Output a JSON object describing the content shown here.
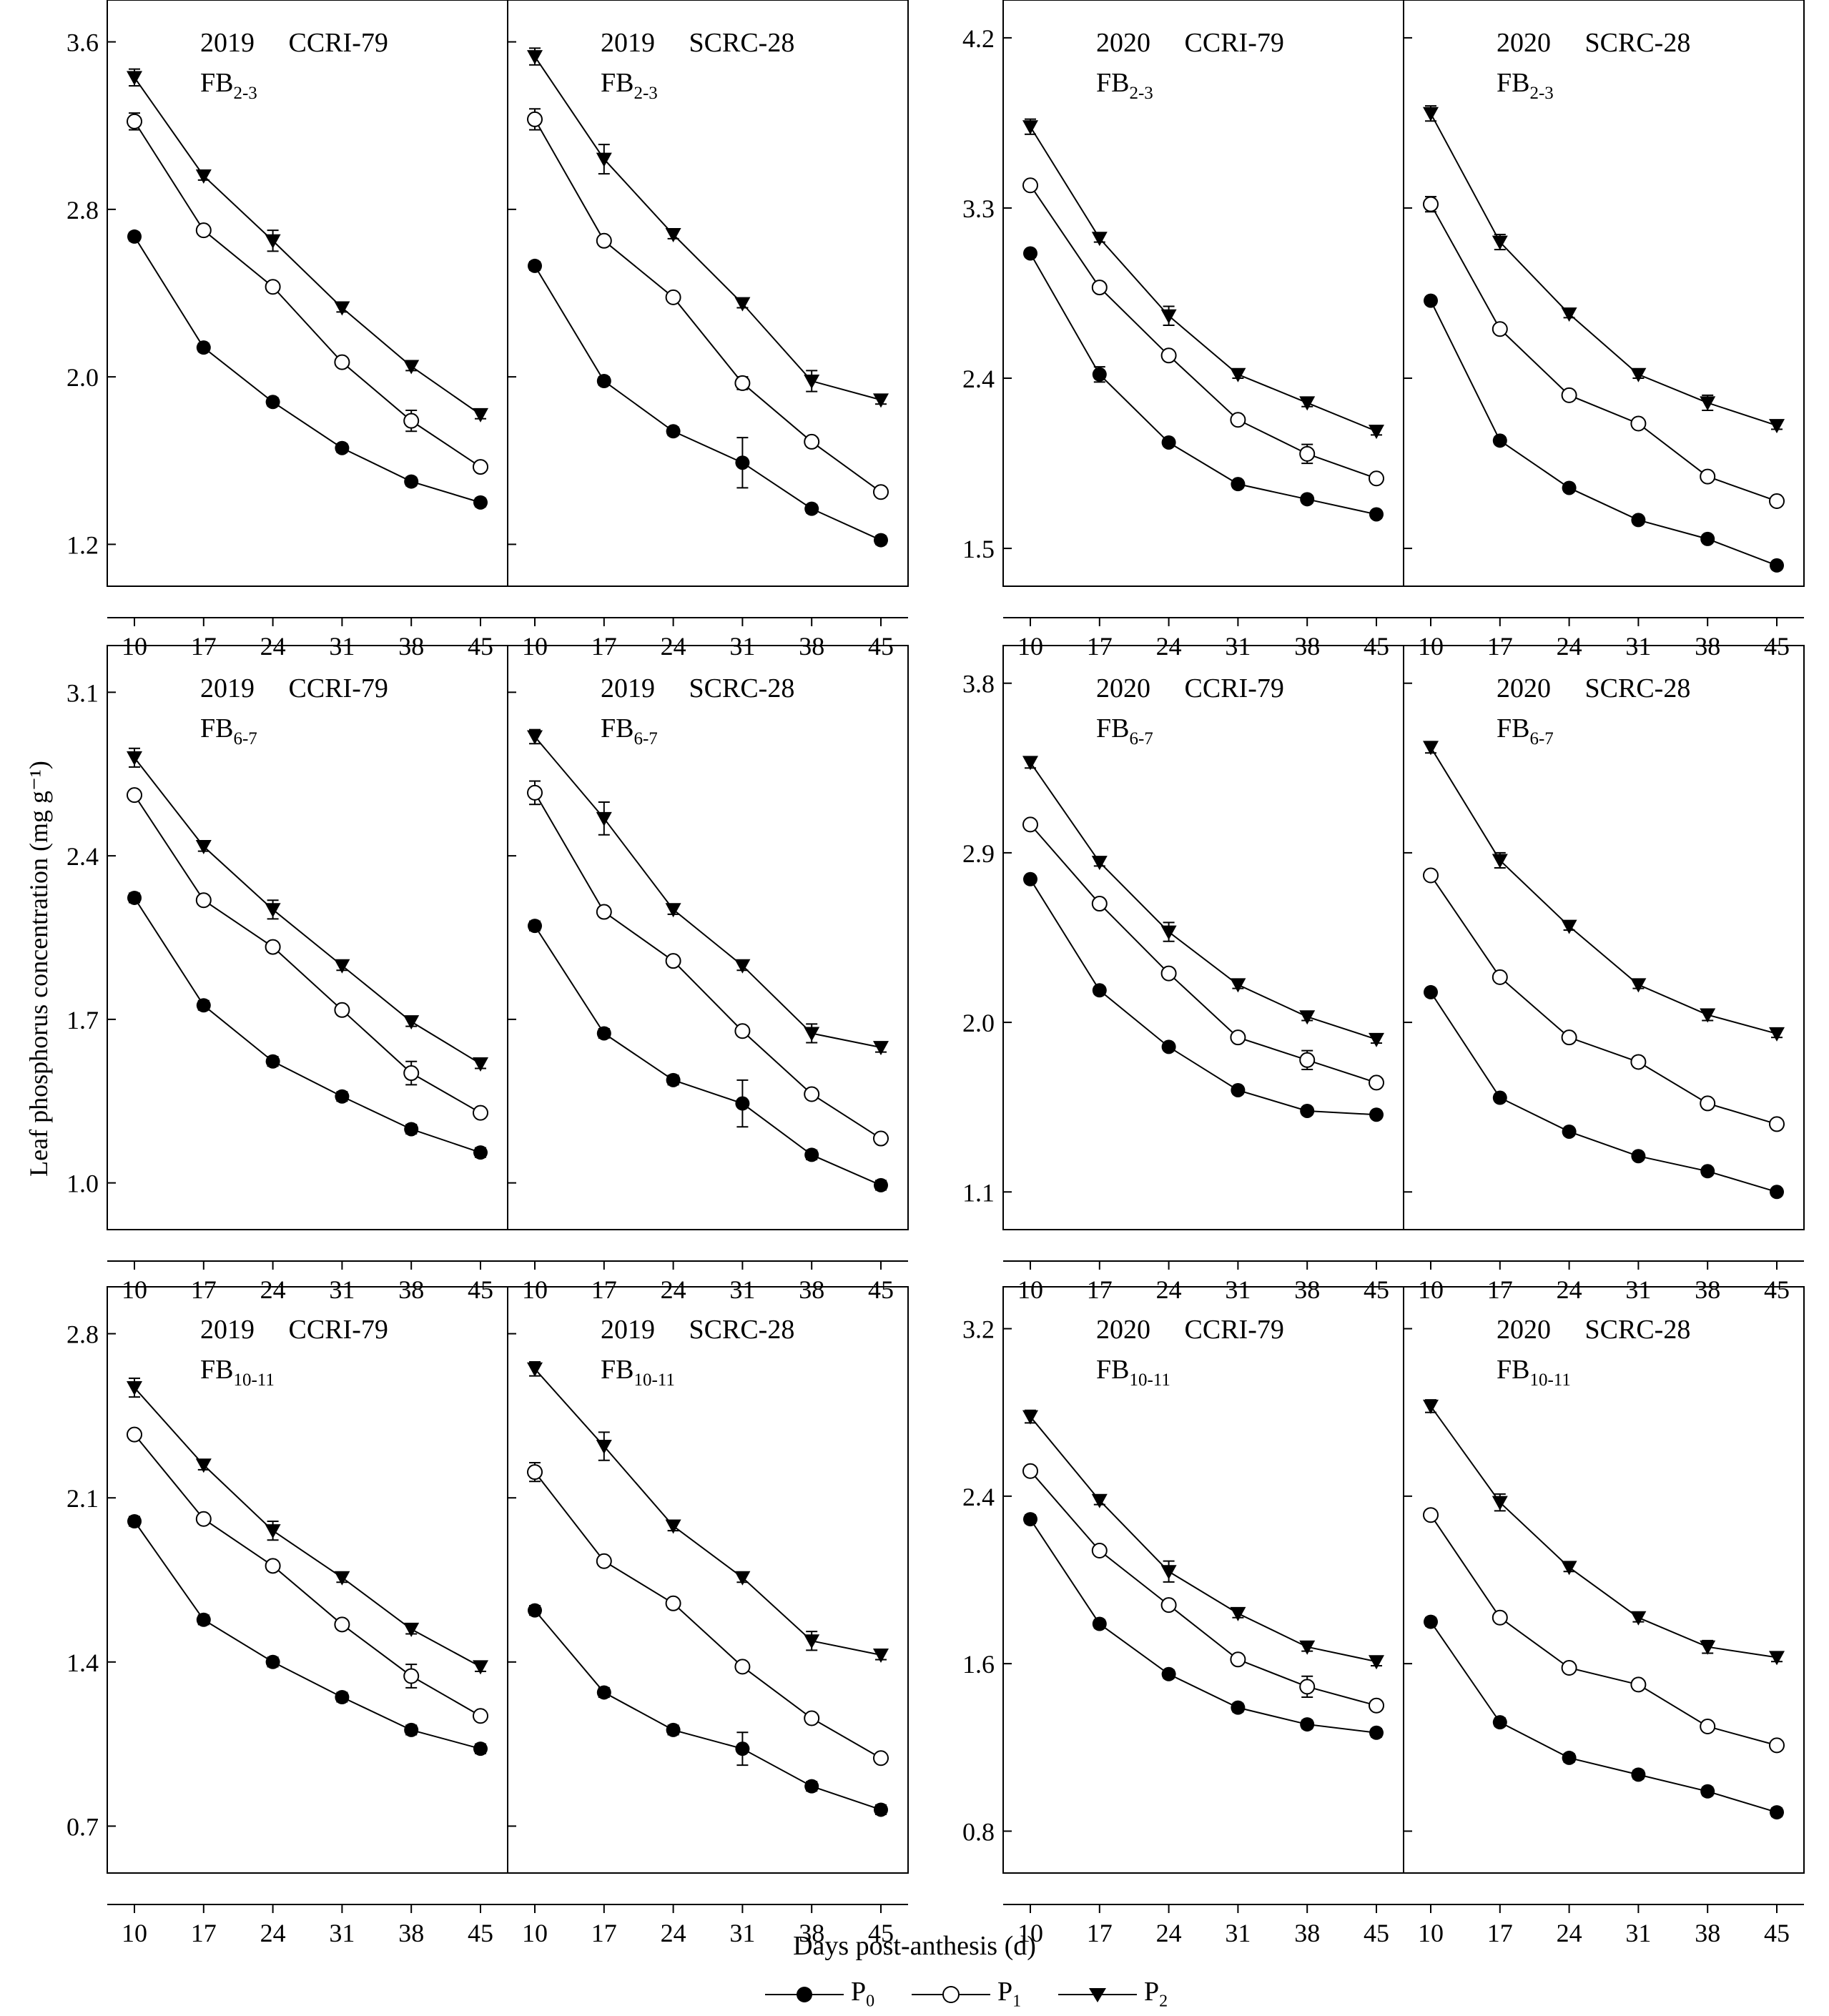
{
  "figure": {
    "ylabel": "Leaf phosphorus concentration (mg g⁻¹)",
    "xlabel": "Days post-anthesis (d)",
    "legend": [
      {
        "label": "P",
        "sub": "0",
        "marker": "filled-circle"
      },
      {
        "label": "P",
        "sub": "1",
        "marker": "open-circle"
      },
      {
        "label": "P",
        "sub": "2",
        "marker": "filled-triangle-down"
      }
    ]
  },
  "chart_data": [
    {
      "type": "line",
      "year": "2019",
      "cultivar": "CCRI-79",
      "position": "FB",
      "position_sub": "2-3",
      "x": [
        10,
        17,
        24,
        31,
        38,
        45
      ],
      "ylim": [
        1.0,
        3.8
      ],
      "yticks": [
        "1.2",
        "2.0",
        "2.8",
        "3.6"
      ],
      "series": [
        {
          "name": "P0",
          "values": [
            2.67,
            2.14,
            1.88,
            1.66,
            1.5,
            1.4
          ],
          "err": [
            0.02,
            0.02,
            0.02,
            0.02,
            0.02,
            0.02
          ]
        },
        {
          "name": "P1",
          "values": [
            3.22,
            2.7,
            2.43,
            2.07,
            1.79,
            1.57
          ],
          "err": [
            0.04,
            0.02,
            0.02,
            0.02,
            0.05,
            0.02
          ]
        },
        {
          "name": "P2",
          "values": [
            3.43,
            2.96,
            2.65,
            2.33,
            2.05,
            1.82
          ],
          "err": [
            0.04,
            0.02,
            0.05,
            0.02,
            0.02,
            0.02
          ]
        }
      ]
    },
    {
      "type": "line",
      "year": "2019",
      "cultivar": "SCRC-28",
      "position": "FB",
      "position_sub": "2-3",
      "x": [
        10,
        17,
        24,
        31,
        38,
        45
      ],
      "ylim": [
        1.0,
        3.8
      ],
      "yticks": [
        "1.2",
        "2.0",
        "2.8",
        "3.6"
      ],
      "series": [
        {
          "name": "P0",
          "values": [
            2.53,
            1.98,
            1.74,
            1.59,
            1.37,
            1.22
          ],
          "err": [
            0.02,
            0.02,
            0.02,
            0.12,
            0.02,
            0.02
          ]
        },
        {
          "name": "P1",
          "values": [
            3.23,
            2.65,
            2.38,
            1.97,
            1.69,
            1.45
          ],
          "err": [
            0.05,
            0.02,
            0.02,
            0.03,
            0.02,
            0.02
          ]
        },
        {
          "name": "P2",
          "values": [
            3.53,
            3.04,
            2.68,
            2.35,
            1.98,
            1.89
          ],
          "err": [
            0.04,
            0.07,
            0.02,
            0.02,
            0.05,
            0.02
          ]
        }
      ]
    },
    {
      "type": "line",
      "year": "2020",
      "cultivar": "CCRI-79",
      "position": "FB",
      "position_sub": "2-3",
      "x": [
        10,
        17,
        24,
        31,
        38,
        45
      ],
      "ylim": [
        1.3,
        4.4
      ],
      "yticks": [
        "1.5",
        "2.4",
        "3.3",
        "4.2"
      ],
      "series": [
        {
          "name": "P0",
          "values": [
            3.06,
            2.42,
            2.06,
            1.84,
            1.76,
            1.68
          ],
          "err": [
            0.02,
            0.04,
            0.02,
            0.02,
            0.02,
            0.02
          ]
        },
        {
          "name": "P1",
          "values": [
            3.42,
            2.88,
            2.52,
            2.18,
            2.0,
            1.87
          ],
          "err": [
            0.02,
            0.02,
            0.02,
            0.02,
            0.05,
            0.02
          ]
        },
        {
          "name": "P2",
          "values": [
            3.73,
            3.14,
            2.73,
            2.42,
            2.27,
            2.12
          ],
          "err": [
            0.04,
            0.02,
            0.05,
            0.02,
            0.02,
            0.02
          ]
        }
      ]
    },
    {
      "type": "line",
      "year": "2020",
      "cultivar": "SCRC-28",
      "position": "FB",
      "position_sub": "2-3",
      "x": [
        10,
        17,
        24,
        31,
        38,
        45
      ],
      "ylim": [
        1.3,
        4.4
      ],
      "yticks": [
        "1.5",
        "2.4",
        "3.3",
        "4.2"
      ],
      "series": [
        {
          "name": "P0",
          "values": [
            2.81,
            2.07,
            1.82,
            1.65,
            1.55,
            1.41
          ],
          "err": [
            0.02,
            0.02,
            0.02,
            0.02,
            0.02,
            0.02
          ]
        },
        {
          "name": "P1",
          "values": [
            3.32,
            2.66,
            2.31,
            2.16,
            1.88,
            1.75
          ],
          "err": [
            0.04,
            0.02,
            0.02,
            0.02,
            0.02,
            0.02
          ]
        },
        {
          "name": "P2",
          "values": [
            3.8,
            3.12,
            2.74,
            2.42,
            2.27,
            2.15
          ],
          "err": [
            0.04,
            0.04,
            0.02,
            0.02,
            0.04,
            0.02
          ]
        }
      ]
    },
    {
      "type": "line",
      "year": "2019",
      "cultivar": "CCRI-79",
      "position": "FB",
      "position_sub": "6-7",
      "x": [
        10,
        17,
        24,
        31,
        38,
        45
      ],
      "ylim": [
        0.8,
        3.3
      ],
      "yticks": [
        "1.0",
        "1.7",
        "2.4",
        "3.1"
      ],
      "series": [
        {
          "name": "P0",
          "values": [
            2.22,
            1.76,
            1.52,
            1.37,
            1.23,
            1.13
          ],
          "err": [
            0.02,
            0.02,
            0.02,
            0.02,
            0.02,
            0.02
          ]
        },
        {
          "name": "P1",
          "values": [
            2.66,
            2.21,
            2.01,
            1.74,
            1.47,
            1.3
          ],
          "err": [
            0.02,
            0.02,
            0.02,
            0.02,
            0.05,
            0.02
          ]
        },
        {
          "name": "P2",
          "values": [
            2.82,
            2.44,
            2.17,
            1.93,
            1.69,
            1.51
          ],
          "err": [
            0.04,
            0.02,
            0.04,
            0.02,
            0.02,
            0.02
          ]
        }
      ]
    },
    {
      "type": "line",
      "year": "2019",
      "cultivar": "SCRC-28",
      "position": "FB",
      "position_sub": "6-7",
      "x": [
        10,
        17,
        24,
        31,
        38,
        45
      ],
      "ylim": [
        0.8,
        3.3
      ],
      "yticks": [
        "1.0",
        "1.7",
        "2.4",
        "3.1"
      ],
      "series": [
        {
          "name": "P0",
          "values": [
            2.1,
            1.64,
            1.44,
            1.34,
            1.12,
            0.99
          ],
          "err": [
            0.02,
            0.02,
            0.02,
            0.1,
            0.02,
            0.02
          ]
        },
        {
          "name": "P1",
          "values": [
            2.67,
            2.16,
            1.95,
            1.65,
            1.38,
            1.19
          ],
          "err": [
            0.05,
            0.02,
            0.02,
            0.02,
            0.02,
            0.02
          ]
        },
        {
          "name": "P2",
          "values": [
            2.91,
            2.56,
            2.17,
            1.93,
            1.64,
            1.58
          ],
          "err": [
            0.03,
            0.07,
            0.02,
            0.02,
            0.04,
            0.02
          ]
        }
      ]
    },
    {
      "type": "line",
      "year": "2020",
      "cultivar": "CCRI-79",
      "position": "FB",
      "position_sub": "6-7",
      "x": [
        10,
        17,
        24,
        31,
        38,
        45
      ],
      "ylim": [
        0.9,
        4.0
      ],
      "yticks": [
        "1.1",
        "2.0",
        "2.9",
        "3.8"
      ],
      "series": [
        {
          "name": "P0",
          "values": [
            2.76,
            2.17,
            1.87,
            1.64,
            1.53,
            1.51
          ],
          "err": [
            0.02,
            0.02,
            0.02,
            0.02,
            0.02,
            0.02
          ]
        },
        {
          "name": "P1",
          "values": [
            3.05,
            2.63,
            2.26,
            1.92,
            1.8,
            1.68
          ],
          "err": [
            0.02,
            0.02,
            0.02,
            0.02,
            0.05,
            0.02
          ]
        },
        {
          "name": "P2",
          "values": [
            3.38,
            2.85,
            2.48,
            2.2,
            2.03,
            1.91
          ],
          "err": [
            0.03,
            0.02,
            0.05,
            0.02,
            0.02,
            0.02
          ]
        }
      ]
    },
    {
      "type": "line",
      "year": "2020",
      "cultivar": "SCRC-28",
      "position": "FB",
      "position_sub": "6-7",
      "x": [
        10,
        17,
        24,
        31,
        38,
        45
      ],
      "ylim": [
        0.9,
        4.0
      ],
      "yticks": [
        "1.1",
        "2.0",
        "2.9",
        "3.8"
      ],
      "series": [
        {
          "name": "P0",
          "values": [
            2.16,
            1.6,
            1.42,
            1.29,
            1.21,
            1.1
          ],
          "err": [
            0.02,
            0.02,
            0.02,
            0.02,
            0.02,
            0.02
          ]
        },
        {
          "name": "P1",
          "values": [
            2.78,
            2.24,
            1.92,
            1.79,
            1.57,
            1.46
          ],
          "err": [
            0.02,
            0.02,
            0.02,
            0.02,
            0.02,
            0.02
          ]
        },
        {
          "name": "P2",
          "values": [
            3.46,
            2.86,
            2.51,
            2.2,
            2.04,
            1.94
          ],
          "err": [
            0.03,
            0.04,
            0.02,
            0.02,
            0.03,
            0.02
          ]
        }
      ]
    },
    {
      "type": "line",
      "year": "2019",
      "cultivar": "CCRI-79",
      "position": "FB",
      "position_sub": "10-11",
      "x": [
        10,
        17,
        24,
        31,
        38,
        45
      ],
      "ylim": [
        0.5,
        3.0
      ],
      "yticks": [
        "0.7",
        "1.4",
        "2.1",
        "2.8"
      ],
      "series": [
        {
          "name": "P0",
          "values": [
            2.0,
            1.58,
            1.4,
            1.25,
            1.11,
            1.03
          ],
          "err": [
            0.02,
            0.02,
            0.02,
            0.02,
            0.02,
            0.02
          ]
        },
        {
          "name": "P1",
          "values": [
            2.37,
            2.01,
            1.81,
            1.56,
            1.34,
            1.17
          ],
          "err": [
            0.02,
            0.02,
            0.02,
            0.02,
            0.05,
            0.02
          ]
        },
        {
          "name": "P2",
          "values": [
            2.57,
            2.24,
            1.96,
            1.76,
            1.54,
            1.38
          ],
          "err": [
            0.04,
            0.02,
            0.04,
            0.02,
            0.02,
            0.02
          ]
        }
      ]
    },
    {
      "type": "line",
      "year": "2019",
      "cultivar": "SCRC-28",
      "position": "FB",
      "position_sub": "10-11",
      "x": [
        10,
        17,
        24,
        31,
        38,
        45
      ],
      "ylim": [
        0.5,
        3.0
      ],
      "yticks": [
        "0.7",
        "1.4",
        "2.1",
        "2.8"
      ],
      "series": [
        {
          "name": "P0",
          "values": [
            1.62,
            1.27,
            1.11,
            1.03,
            0.87,
            0.77
          ],
          "err": [
            0.02,
            0.02,
            0.02,
            0.07,
            0.02,
            0.02
          ]
        },
        {
          "name": "P1",
          "values": [
            2.21,
            1.83,
            1.65,
            1.38,
            1.16,
            0.99
          ],
          "err": [
            0.04,
            0.02,
            0.02,
            0.02,
            0.02,
            0.02
          ]
        },
        {
          "name": "P2",
          "values": [
            2.65,
            2.32,
            1.98,
            1.76,
            1.49,
            1.43
          ],
          "err": [
            0.03,
            0.06,
            0.02,
            0.02,
            0.04,
            0.02
          ]
        }
      ]
    },
    {
      "type": "line",
      "year": "2020",
      "cultivar": "CCRI-79",
      "position": "FB",
      "position_sub": "10-11",
      "x": [
        10,
        17,
        24,
        31,
        38,
        45
      ],
      "ylim": [
        0.6,
        3.4
      ],
      "yticks": [
        "0.8",
        "1.6",
        "2.4",
        "3.2"
      ],
      "series": [
        {
          "name": "P0",
          "values": [
            2.29,
            1.79,
            1.55,
            1.39,
            1.31,
            1.27
          ],
          "err": [
            0.02,
            0.02,
            0.02,
            0.02,
            0.02,
            0.02
          ]
        },
        {
          "name": "P1",
          "values": [
            2.52,
            2.14,
            1.88,
            1.62,
            1.49,
            1.4
          ],
          "err": [
            0.02,
            0.02,
            0.02,
            0.02,
            0.05,
            0.02
          ]
        },
        {
          "name": "P2",
          "values": [
            2.78,
            2.38,
            2.04,
            1.84,
            1.68,
            1.61
          ],
          "err": [
            0.03,
            0.02,
            0.05,
            0.02,
            0.02,
            0.02
          ]
        }
      ]
    },
    {
      "type": "line",
      "year": "2020",
      "cultivar": "SCRC-28",
      "position": "FB",
      "position_sub": "10-11",
      "x": [
        10,
        17,
        24,
        31,
        38,
        45
      ],
      "ylim": [
        0.6,
        3.4
      ],
      "yticks": [
        "0.8",
        "1.6",
        "2.4",
        "3.2"
      ],
      "series": [
        {
          "name": "P0",
          "values": [
            1.8,
            1.32,
            1.15,
            1.07,
            0.99,
            0.89
          ],
          "err": [
            0.02,
            0.02,
            0.02,
            0.02,
            0.02,
            0.02
          ]
        },
        {
          "name": "P1",
          "values": [
            2.31,
            1.82,
            1.58,
            1.5,
            1.3,
            1.21
          ],
          "err": [
            0.02,
            0.02,
            0.02,
            0.02,
            0.02,
            0.02
          ]
        },
        {
          "name": "P2",
          "values": [
            2.83,
            2.37,
            2.06,
            1.82,
            1.68,
            1.63
          ],
          "err": [
            0.03,
            0.04,
            0.02,
            0.02,
            0.03,
            0.02
          ]
        }
      ]
    }
  ]
}
